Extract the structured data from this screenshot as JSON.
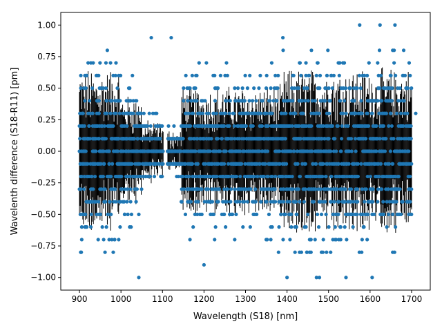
{
  "chart_data": {
    "type": "scatter",
    "title": "",
    "xlabel": "Wavelength (S18) [nm]",
    "ylabel": "Wavelenth difference (S18-R11) [pm]",
    "xlim": [
      855,
      1745
    ],
    "ylim": [
      -1.1,
      1.1
    ],
    "x_ticks": [
      900,
      1000,
      1100,
      1200,
      1300,
      1400,
      1500,
      1600,
      1700
    ],
    "x_tick_labels": [
      "900",
      "1000",
      "1100",
      "1200",
      "1300",
      "1400",
      "1500",
      "1600",
      "1700"
    ],
    "y_ticks": [
      -1.0,
      -0.75,
      -0.5,
      -0.25,
      0.0,
      0.25,
      0.5,
      0.75,
      1.0
    ],
    "y_tick_labels": [
      "−1.00",
      "−0.75",
      "−0.50",
      "−0.25",
      "0.00",
      "0.25",
      "0.50",
      "0.75",
      "1.00"
    ],
    "grid": false,
    "legend": "none",
    "colors": {
      "points": "#1f77b4",
      "error_bars": "#000000"
    },
    "series": [
      {
        "name": "",
        "marker": "dot",
        "error_bars": true,
        "x_range": [
          900,
          1710
        ],
        "y_step": 0.1,
        "outliers": [
          {
            "x": 1073,
            "y": 0.9
          },
          {
            "x": 1121,
            "y": 0.9
          },
          {
            "x": 1390,
            "y": 0.9
          },
          {
            "x": 1575,
            "y": 1.0
          },
          {
            "x": 1624,
            "y": 1.0
          },
          {
            "x": 1660,
            "y": 1.0
          },
          {
            "x": 1043,
            "y": -1.0
          },
          {
            "x": 1400,
            "y": -1.0
          },
          {
            "x": 1471,
            "y": -1.0
          },
          {
            "x": 1478,
            "y": -1.0
          },
          {
            "x": 1542,
            "y": -1.0
          },
          {
            "x": 1605,
            "y": -1.0
          },
          {
            "x": 1710,
            "y": 0.3
          },
          {
            "x": 903,
            "y": -0.8
          },
          {
            "x": 1200,
            "y": -0.9
          }
        ]
      }
    ]
  }
}
